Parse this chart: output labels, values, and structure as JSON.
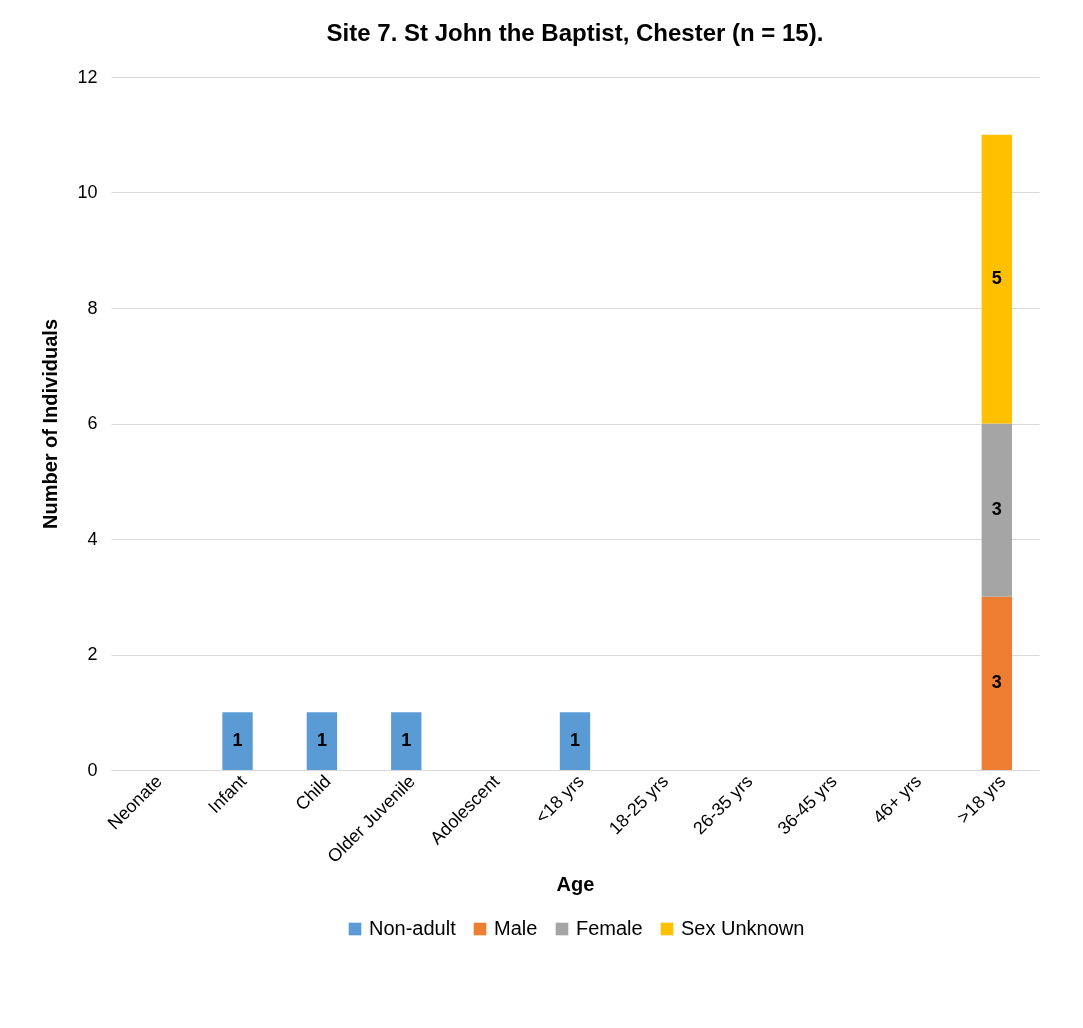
{
  "chart_data": {
    "type": "bar",
    "title": "Site 7. St John the Baptist, Chester (n = 15).",
    "xlabel": "Age",
    "ylabel": "Number of Individuals",
    "categories": [
      "Neonate",
      "Infant",
      "Child",
      "Older Juvenile",
      "Adolescent",
      "<18 yrs",
      "18-25 yrs",
      "26-35 yrs",
      "36-45 yrs",
      "46+ yrs",
      ">18 yrs"
    ],
    "series": [
      {
        "name": "Non-adult",
        "color": "#5b9bd5",
        "values": [
          null,
          1,
          1,
          1,
          null,
          1,
          null,
          null,
          null,
          null,
          null
        ]
      },
      {
        "name": "Male",
        "color": "#ed7d31",
        "values": [
          null,
          null,
          null,
          null,
          null,
          null,
          null,
          null,
          null,
          null,
          3
        ]
      },
      {
        "name": "Female",
        "color": "#a5a5a5",
        "values": [
          null,
          null,
          null,
          null,
          null,
          null,
          null,
          null,
          null,
          null,
          3
        ]
      },
      {
        "name": "Sex Unknown",
        "color": "#ffc000",
        "values": [
          null,
          null,
          null,
          null,
          null,
          null,
          null,
          null,
          null,
          null,
          5
        ]
      }
    ],
    "stacked": true,
    "data_labels": true,
    "ylim": [
      0,
      12
    ],
    "yticks": [
      0,
      2,
      4,
      6,
      8,
      10,
      12
    ],
    "grid": "y",
    "legend": "bottom"
  }
}
